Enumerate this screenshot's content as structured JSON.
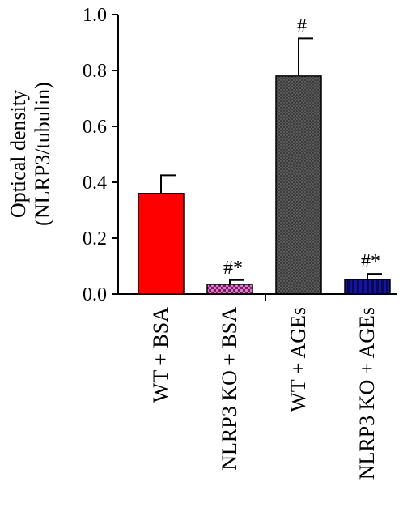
{
  "chart_data": {
    "type": "bar",
    "categories": [
      "WT + BSA",
      "NLRP3 KO + BSA",
      "WT + AGEs",
      "NLRP3 KO + AGEs"
    ],
    "values": [
      0.36,
      0.035,
      0.78,
      0.052
    ],
    "errors": [
      0.065,
      0.015,
      0.135,
      0.02
    ],
    "annotations": [
      "",
      "#*",
      "#",
      "#*"
    ],
    "ylabel_line1": "Optical density",
    "ylabel_line2": "(NLRP3/tubulin)",
    "ylim": [
      0,
      1.0
    ],
    "yticks": [
      "0.0",
      "0.2",
      "0.4",
      "0.6",
      "0.8",
      "1.0"
    ],
    "colors": [
      "#ff0000",
      "#7a1a6a",
      "#3c3c3c",
      "#1414a0"
    ],
    "patterns": [
      "solid",
      "checker",
      "dots",
      "stripes"
    ],
    "grid": false,
    "legend": "none"
  }
}
